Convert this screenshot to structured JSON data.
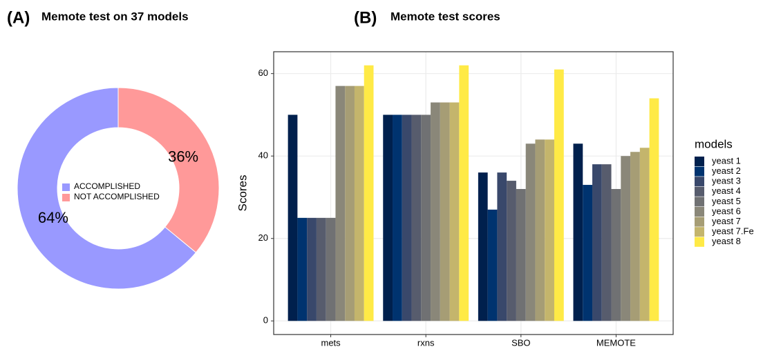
{
  "chart_data": [
    {
      "type": "donut",
      "panel_label": "(A)",
      "title": "Memote test on 37 models",
      "categories": [
        "ACCOMPLISHED",
        "NOT ACCOMPLISHED"
      ],
      "values": [
        64,
        36
      ],
      "value_labels": [
        "64%",
        "36%"
      ],
      "colors": [
        "#9999ff",
        "#ff9999"
      ]
    },
    {
      "type": "bar",
      "panel_label": "(B)",
      "title": "Memote test scores",
      "ylabel": "Scores",
      "legend_title": "models",
      "categories": [
        "mets",
        "rxns",
        "SBO",
        "MEMOTE"
      ],
      "ylim": [
        -3.3,
        65.3
      ],
      "yticks": [
        0,
        20,
        40,
        60
      ],
      "grid": true,
      "series": [
        {
          "name": "yeast 1",
          "color": "#00204d",
          "values": [
            50,
            50,
            36,
            43
          ]
        },
        {
          "name": "yeast 2",
          "color": "#00336f",
          "values": [
            25,
            50,
            27,
            33
          ]
        },
        {
          "name": "yeast 3",
          "color": "#39486b",
          "values": [
            25,
            50,
            36,
            38
          ]
        },
        {
          "name": "yeast 4",
          "color": "#575c6d",
          "values": [
            25,
            50,
            34,
            38
          ]
        },
        {
          "name": "yeast 5",
          "color": "#707173",
          "values": [
            25,
            50,
            32,
            32
          ]
        },
        {
          "name": "yeast 6",
          "color": "#8a8779",
          "values": [
            57,
            53,
            43,
            40
          ]
        },
        {
          "name": "yeast 7",
          "color": "#a69d75",
          "values": [
            57,
            53,
            44,
            41
          ]
        },
        {
          "name": "yeast 7.Fe",
          "color": "#c4b56c",
          "values": [
            57,
            53,
            44,
            42
          ]
        },
        {
          "name": "yeast 8",
          "color": "#ffea46",
          "values": [
            62,
            62,
            61,
            54
          ]
        }
      ]
    }
  ]
}
